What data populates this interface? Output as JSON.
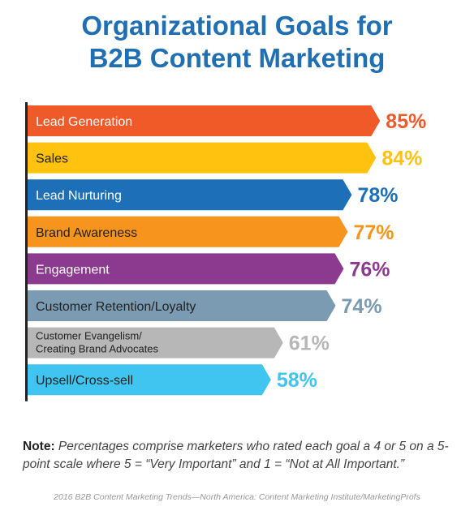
{
  "title_lines": [
    "Organizational Goals for",
    "B2B Content Marketing"
  ],
  "chart_data": {
    "type": "bar",
    "orientation": "horizontal",
    "title": "Organizational Goals for B2B Content Marketing",
    "categories": [
      [
        "Lead Generation"
      ],
      [
        "Sales"
      ],
      [
        "Lead Nurturing"
      ],
      [
        "Brand Awareness"
      ],
      [
        "Engagement"
      ],
      [
        "Customer Retention/Loyalty"
      ],
      [
        "Customer Evangelism/",
        "Creating Brand Advocates"
      ],
      [
        "Upsell/Cross-sell"
      ]
    ],
    "values": [
      85,
      84,
      78,
      77,
      76,
      74,
      61,
      58
    ],
    "value_labels": [
      "85%",
      "84%",
      "78%",
      "77%",
      "76%",
      "74%",
      "61%",
      "58%"
    ],
    "colors": [
      "#f05a28",
      "#ffc20e",
      "#1d70b8",
      "#f7941d",
      "#8b3a8f",
      "#7a9bb2",
      "#b7b7b7",
      "#40c4f0"
    ],
    "label_colors": [
      "#ffffff",
      "#222222",
      "#ffffff",
      "#222222",
      "#ffffff",
      "#222222",
      "#222222",
      "#222222"
    ],
    "xlim": [
      0,
      100
    ],
    "grid": false
  },
  "note": {
    "label": "Note:",
    "text": " Percentages comprise marketers who rated each goal a 4 or 5 on a 5-point scale where 5 = “Very Important” and 1 = “Not at All Important.”"
  },
  "source": "2016 B2B Content Marketing Trends—North America: Content Marketing Institute/MarketingProfs"
}
